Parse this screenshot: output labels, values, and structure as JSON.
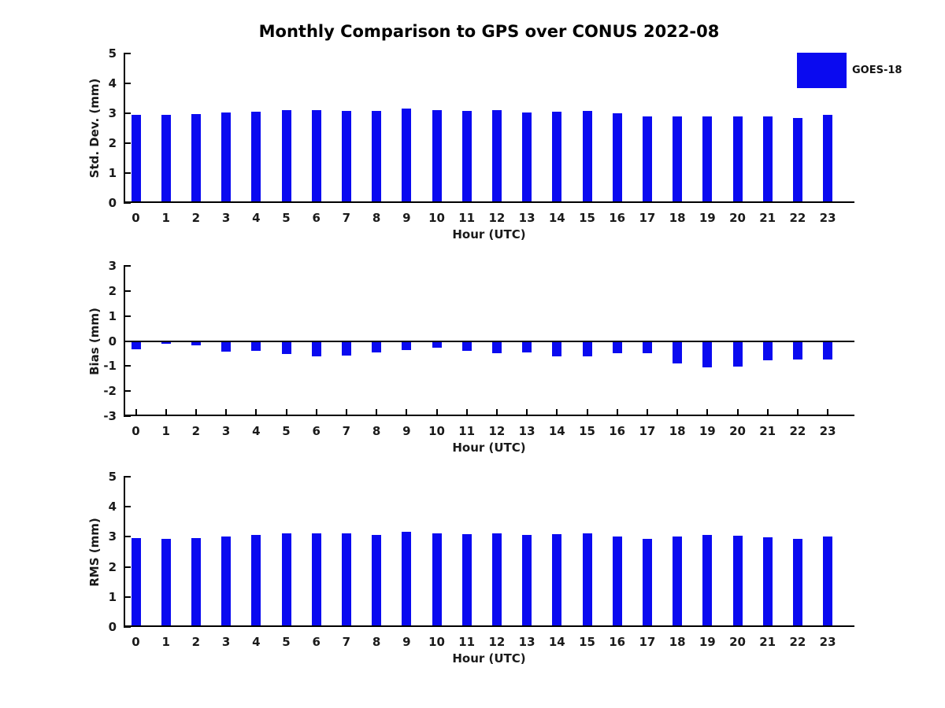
{
  "title": "Monthly Comparison to GPS over CONUS 2022-08",
  "legend": {
    "label": "GOES-18"
  },
  "colors": {
    "bar": "#0a0af0",
    "axis": "#000000",
    "text": "#1a1a1a",
    "background": "#ffffff"
  },
  "chart_data": [
    {
      "type": "bar",
      "panel": "std-dev",
      "ylabel": "Std. Dev. (mm)",
      "xlabel": "Hour (UTC)",
      "legend_entry": "GOES-18",
      "categories": [
        "0",
        "1",
        "2",
        "3",
        "4",
        "5",
        "6",
        "7",
        "8",
        "9",
        "10",
        "11",
        "12",
        "13",
        "14",
        "15",
        "16",
        "17",
        "18",
        "19",
        "20",
        "21",
        "22",
        "23"
      ],
      "values": [
        2.93,
        2.93,
        2.97,
        3.01,
        3.04,
        3.09,
        3.09,
        3.06,
        3.06,
        3.15,
        3.1,
        3.06,
        3.08,
        3.01,
        3.04,
        3.07,
        2.98,
        2.89,
        2.87,
        2.87,
        2.88,
        2.88,
        2.84,
        2.93
      ],
      "ylim": [
        0,
        5
      ],
      "yticks": [
        0,
        1,
        2,
        3,
        4,
        5
      ],
      "grid": false,
      "zero_line": false,
      "x_ticks_visible": false
    },
    {
      "type": "bar",
      "panel": "bias",
      "ylabel": "Bias (mm)",
      "xlabel": "Hour (UTC)",
      "legend_entry": "GOES-18",
      "categories": [
        "0",
        "1",
        "2",
        "3",
        "4",
        "5",
        "6",
        "7",
        "8",
        "9",
        "10",
        "11",
        "12",
        "13",
        "14",
        "15",
        "16",
        "17",
        "18",
        "19",
        "20",
        "21",
        "22",
        "23"
      ],
      "values": [
        -0.32,
        -0.1,
        -0.18,
        -0.42,
        -0.38,
        -0.52,
        -0.6,
        -0.57,
        -0.47,
        -0.36,
        -0.28,
        -0.4,
        -0.5,
        -0.47,
        -0.62,
        -0.6,
        -0.5,
        -0.5,
        -0.89,
        -1.05,
        -1.03,
        -0.77,
        -0.73,
        -0.75
      ],
      "ylim": [
        -3,
        3
      ],
      "yticks": [
        -3,
        -2,
        -1,
        0,
        1,
        2,
        3
      ],
      "grid": false,
      "zero_line": true,
      "x_ticks_visible": true
    },
    {
      "type": "bar",
      "panel": "rms",
      "ylabel": "RMS (mm)",
      "xlabel": "Hour (UTC)",
      "legend_entry": "GOES-18",
      "categories": [
        "0",
        "1",
        "2",
        "3",
        "4",
        "5",
        "6",
        "7",
        "8",
        "9",
        "10",
        "11",
        "12",
        "13",
        "14",
        "15",
        "16",
        "17",
        "18",
        "19",
        "20",
        "21",
        "22",
        "23"
      ],
      "values": [
        2.95,
        2.94,
        2.97,
        3.02,
        3.05,
        3.12,
        3.12,
        3.11,
        3.07,
        3.17,
        3.11,
        3.09,
        3.12,
        3.05,
        3.1,
        3.11,
        3.02,
        2.94,
        3.0,
        3.06,
        3.04,
        2.99,
        2.94,
        3.02
      ],
      "ylim": [
        0,
        5
      ],
      "yticks": [
        0,
        1,
        2,
        3,
        4,
        5
      ],
      "grid": false,
      "zero_line": false,
      "x_ticks_visible": false
    }
  ]
}
